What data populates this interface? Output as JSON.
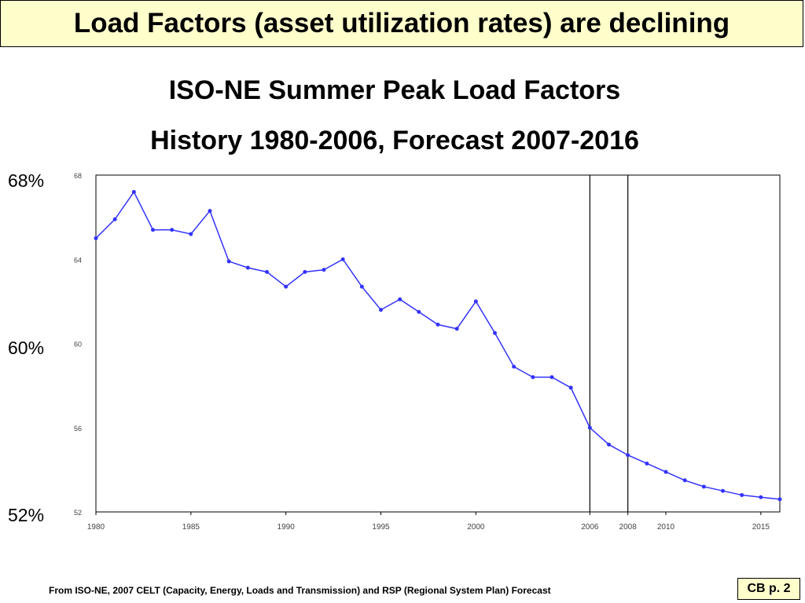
{
  "slide": {
    "title": "Load Factors (asset utilization rates) are declining",
    "footer": "From ISO-NE, 2007 CELT (Capacity, Energy, Loads and Transmission) and RSP (Regional System Plan) Forecast",
    "page_badge": "CB p. 2",
    "side_labels": [
      "68%",
      "60%",
      "52%"
    ],
    "accent_color": "#ffffcc"
  },
  "chart_data": {
    "type": "line",
    "title": "ISO-NE Summer Peak Load Factors",
    "subtitle": "History 1980-2006, Forecast 2007-2016",
    "xlabel": "",
    "ylabel": "",
    "xlim": [
      1980,
      2016
    ],
    "ylim": [
      52,
      68
    ],
    "yticks": [
      52,
      56,
      60,
      64,
      68
    ],
    "xticks": [
      1980,
      1985,
      1990,
      1995,
      2000,
      2006,
      2008,
      2010,
      2015
    ],
    "vertical_markers": [
      2006,
      2008
    ],
    "grid": false,
    "line_color": "#3333ff",
    "series": [
      {
        "x": [
          1980,
          1981,
          1982,
          1983,
          1984,
          1985,
          1986,
          1987,
          1988,
          1989,
          1990,
          1991,
          1992,
          1993,
          1994,
          1995,
          1996,
          1997,
          1998,
          1999,
          2000,
          2001,
          2002,
          2003,
          2004,
          2005,
          2006,
          2007,
          2008,
          2009,
          2010,
          2011,
          2012,
          2013,
          2014,
          2015,
          2016
        ],
        "values": [
          65.0,
          65.9,
          67.2,
          65.4,
          65.4,
          65.2,
          66.3,
          63.9,
          63.6,
          63.4,
          62.7,
          63.4,
          63.5,
          64.0,
          62.7,
          61.6,
          62.1,
          61.5,
          60.9,
          60.7,
          62.0,
          60.5,
          58.9,
          58.4,
          58.4,
          57.9,
          56.0,
          55.2,
          54.7,
          54.3,
          53.9,
          53.5,
          53.2,
          53.0,
          52.8,
          52.7,
          52.6
        ]
      }
    ]
  }
}
